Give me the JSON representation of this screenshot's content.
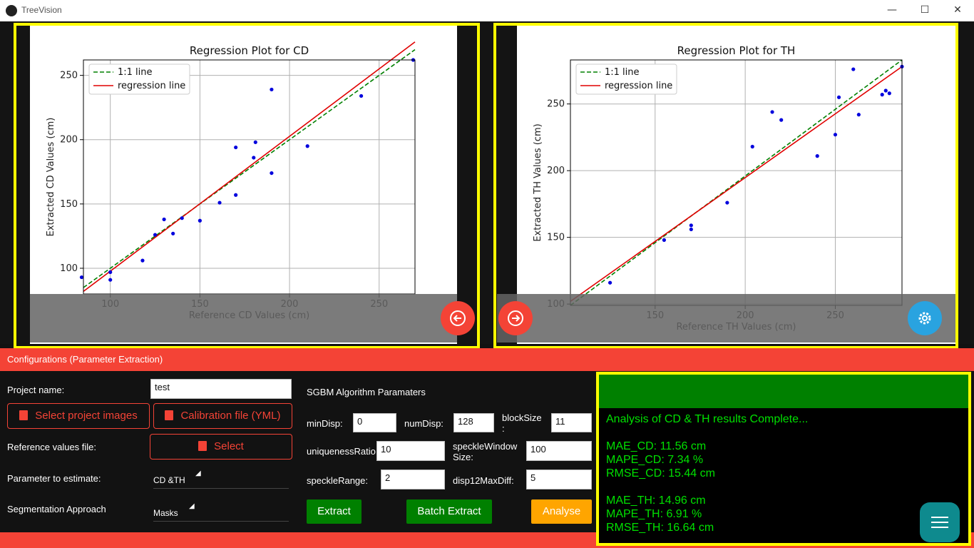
{
  "app": {
    "title": "TreeVision"
  },
  "window": {
    "minimize": "—",
    "maximize": "☐",
    "close": "✕"
  },
  "plots": [
    {
      "title": "Regression Plot for CD",
      "xlabel": "Reference CD Values (cm)",
      "ylabel": "Extracted CD Values (cm)",
      "xticks": [
        "100",
        "150",
        "200",
        "250"
      ],
      "yticks": [
        "100",
        "150",
        "200",
        "250"
      ],
      "legend": [
        "1:1 line",
        "regression line"
      ]
    },
    {
      "title": "Regression Plot for TH",
      "xlabel": "Reference TH Values (cm)",
      "ylabel": "Extracted TH Values (cm)",
      "xticks": [
        "150",
        "200",
        "250"
      ],
      "yticks": [
        "100",
        "150",
        "200",
        "250"
      ],
      "legend": [
        "1:1 line",
        "regression line"
      ]
    }
  ],
  "chart_data": [
    {
      "type": "scatter",
      "title": "Regression Plot for CD",
      "xlabel": "Reference CD Values (cm)",
      "ylabel": "Extracted CD Values (cm)",
      "xlim": [
        85,
        270
      ],
      "ylim": [
        80,
        262
      ],
      "grid": true,
      "legend_position": "top-left",
      "series": [
        {
          "name": "1:1 line",
          "line": [
            [
              85,
              85
            ],
            [
              270,
              270
            ]
          ],
          "color": "#008000",
          "style": "dashed"
        },
        {
          "name": "regression line",
          "line": [
            [
              85,
              82
            ],
            [
              270,
              276
            ]
          ],
          "color": "#e00000",
          "style": "solid"
        },
        {
          "points": [
            [
              84,
              93
            ],
            [
              100,
              97
            ],
            [
              100,
              91
            ],
            [
              118,
              106
            ],
            [
              125,
              126
            ],
            [
              130,
              138
            ],
            [
              135,
              127
            ],
            [
              140,
              139
            ],
            [
              150,
              137
            ],
            [
              161,
              151
            ],
            [
              170,
              157
            ],
            [
              170,
              194
            ],
            [
              180,
              186
            ],
            [
              181,
              198
            ],
            [
              190,
              239
            ],
            [
              190,
              174
            ],
            [
              210,
              195
            ],
            [
              240,
              234
            ],
            [
              269,
              262
            ]
          ],
          "color": "#0000dd"
        }
      ]
    },
    {
      "type": "scatter",
      "title": "Regression Plot for TH",
      "xlabel": "Reference TH Values (cm)",
      "ylabel": "Extracted TH Values (cm)",
      "xlim": [
        103,
        287
      ],
      "ylim": [
        99,
        283
      ],
      "grid": true,
      "legend_position": "top-left",
      "series": [
        {
          "name": "1:1 line",
          "line": [
            [
              103,
              99
            ],
            [
              287,
              283
            ]
          ],
          "color": "#008000",
          "style": "dashed"
        },
        {
          "name": "regression line",
          "line": [
            [
              103,
              102
            ],
            [
              287,
              278
            ]
          ],
          "color": "#e00000",
          "style": "solid"
        },
        {
          "points": [
            [
              125,
              116
            ],
            [
              155,
              148
            ],
            [
              170,
              159
            ],
            [
              170,
              156
            ],
            [
              190,
              176
            ],
            [
              204,
              218
            ],
            [
              215,
              244
            ],
            [
              220,
              238
            ],
            [
              240,
              211
            ],
            [
              250,
              227
            ],
            [
              252,
              255
            ],
            [
              260,
              276
            ],
            [
              263,
              242
            ],
            [
              276,
              257
            ],
            [
              278,
              260
            ],
            [
              280,
              258
            ],
            [
              287,
              278
            ]
          ],
          "color": "#0000dd"
        }
      ]
    }
  ],
  "config": {
    "header": "Configurations (Parameter Extraction)",
    "project_name_label": "Project name:",
    "project_name_value": "test",
    "select_images": "Select project images",
    "calibration": "Calibration file (YML)",
    "reference_label": "Reference values file:",
    "reference_select": "Select",
    "param_label": "Parameter to estimate:",
    "param_value": "CD &TH",
    "seg_label": "Segmentation Approach",
    "seg_value": "Masks",
    "sgbm_title": "SGBM Algorithm Paramaters",
    "minDisp_label": "minDisp:",
    "minDisp": "0",
    "numDisp_label": "numDisp:",
    "numDisp": "128",
    "blockSize_label": "blockSize",
    "blockSize_colon": ":",
    "blockSize": "11",
    "uniqueness_label": "uniquenessRatio:",
    "uniqueness": "10",
    "speckleWindow_label": "speckleWindow",
    "speckleWindow_label2": "Size:",
    "speckleWindow": "100",
    "speckleRange_label": "speckleRange:",
    "speckleRange": "2",
    "disp12_label": "disp12MaxDiff:",
    "disp12": "5",
    "extract": "Extract",
    "batch_extract": "Batch Extract",
    "analyse": "Analyse"
  },
  "results": {
    "status": "Analysis of CD & TH results Complete...",
    "mae_cd": "MAE_CD: 11.56 cm",
    "mape_cd": "MAPE_CD: 7.34 %",
    "rmse_cd": "RMSE_CD: 15.44 cm",
    "mae_th": "MAE_TH: 14.96 cm",
    "mape_th": "MAPE_TH: 6.91 %",
    "rmse_th": "RMSE_TH: 16.64 cm"
  },
  "colors": {
    "accent": "#f44336",
    "highlight": "#ffff00",
    "success": "#008000",
    "warning": "#ffa500",
    "info": "#29a3e0",
    "fab": "#0e8a8e"
  },
  "icons": {
    "prev": "arrow-left-circle-icon",
    "next": "arrow-right-circle-icon",
    "settings": "gear-icon",
    "menu": "hamburger-menu-icon",
    "folder": "folder-icon",
    "file": "file-icon"
  }
}
